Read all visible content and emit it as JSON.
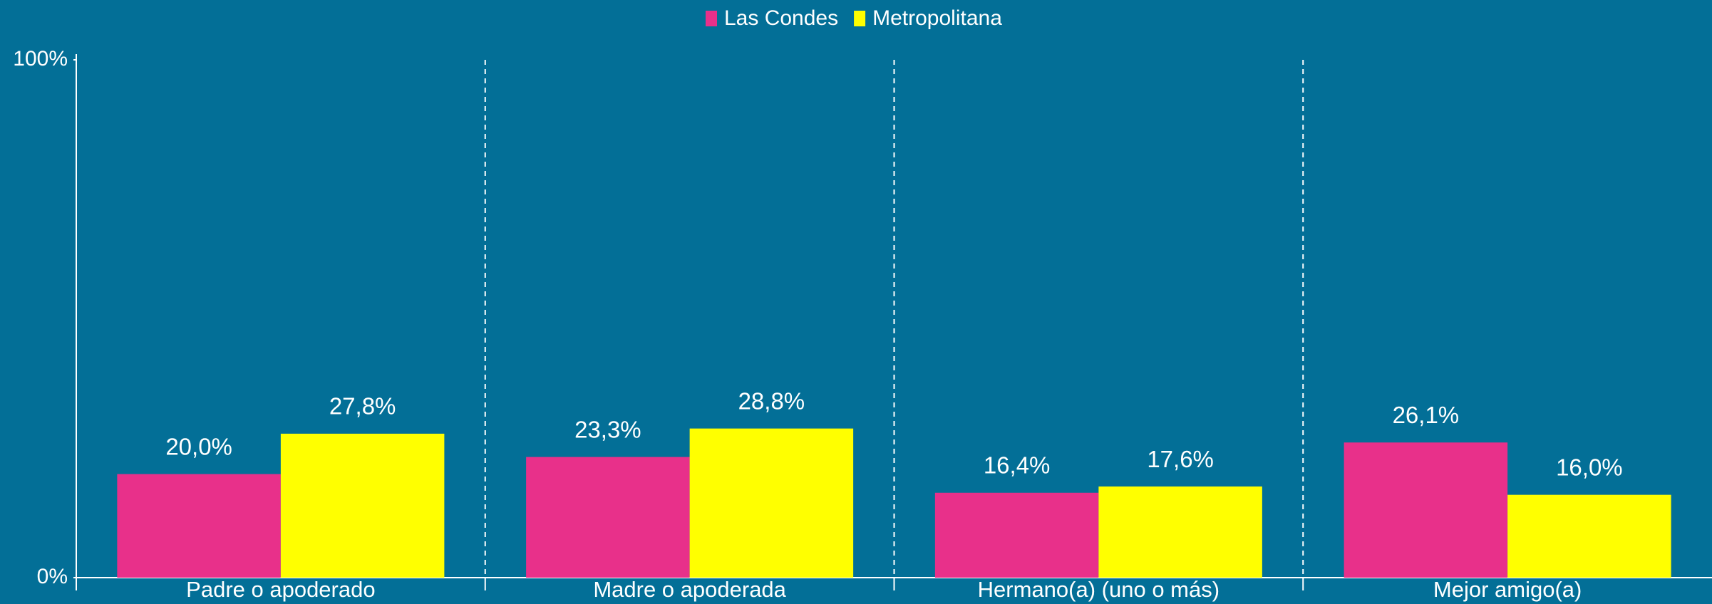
{
  "chart_data": {
    "type": "bar",
    "categories": [
      "Padre o apoderado",
      "Madre o apoderada",
      "Hermano(a) (uno o más)",
      "Mejor amigo(a)"
    ],
    "series": [
      {
        "name": "Las Condes",
        "color": "#e8308a",
        "values": [
          20.0,
          23.3,
          16.4,
          26.1
        ],
        "value_labels": [
          "20,0%",
          "23,3%",
          "16,4%",
          "26,1%"
        ]
      },
      {
        "name": "Metropolitana",
        "color": "#ffff00",
        "values": [
          27.8,
          28.8,
          17.6,
          16.0
        ],
        "value_labels": [
          "27,8%",
          "28,8%",
          "17,6%",
          "16,0%"
        ]
      }
    ],
    "ylim": [
      0,
      100
    ],
    "yticks": [
      {
        "value": 0,
        "label": "0%"
      },
      {
        "value": 100,
        "label": "100%"
      }
    ],
    "legend": "top"
  }
}
